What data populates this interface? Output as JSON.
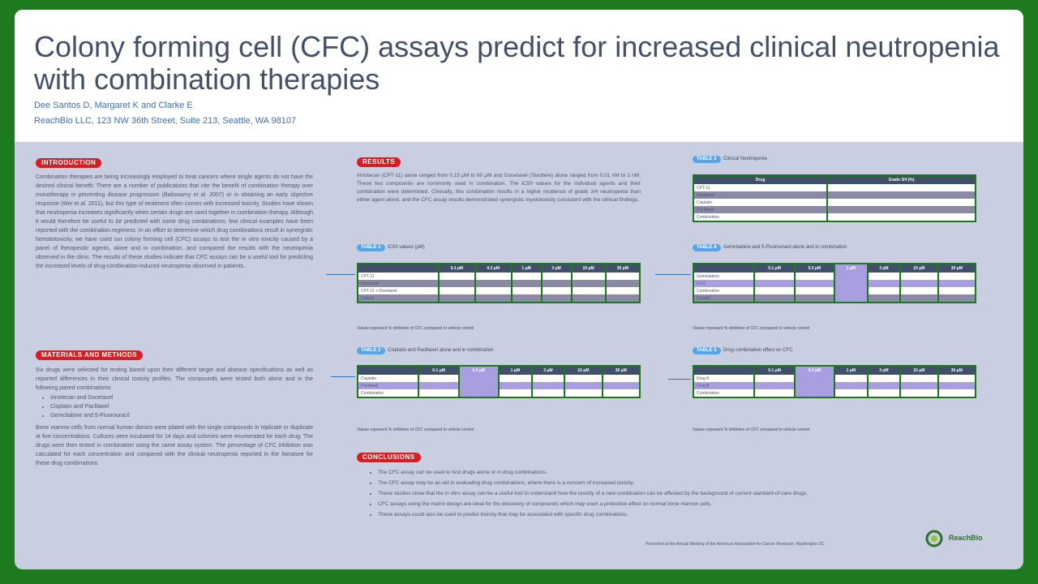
{
  "header": {
    "title": "Colony forming cell (CFC) assays predict for increased clinical neutropenia with combination therapies",
    "authors": "Dee Santos D, Margaret K and Clarke E",
    "affiliation": "ReachBio LLC, 123 NW 36th Street, Suite 213, Seattle, WA 98107"
  },
  "introduction": {
    "label": "INTRODUCTION",
    "text": "Combination therapies are being increasingly employed to treat cancers where single agents do not have the desired clinical benefit. There are a number of publications that cite the benefit of combination therapy over monotherapy in preventing disease progression (Baliswamy et al. 2007) or in obtaining an early objective response (Wei et al. 2011), but this type of treatment often comes with increased toxicity. Studies have shown that neutropenia increases significantly when certain drugs are used together in combination therapy. Although it would therefore be useful to be predicted with some drug combinations, few clinical examples have been reported with the combination regimens. In an effort to determine which drug combinations result in synergistic hematotoxicity, we have used our colony forming cell (CFC) assays to test the in vitro toxicity caused by a panel of therapeutic agents, alone and in combination, and compared the results with the neutropenia observed in the clinic. The results of these studies indicate that CFC assays can be a useful tool for predicting the increased levels of drug-combination-induced neutropenia observed in patients."
  },
  "methods": {
    "label": "MATERIALS AND METHODS",
    "text": "Six drugs were selected for testing based upon their different target and disease specifications as well as reported differences in their clinical toxicity profiles. The compounds were tested both alone and in the following paired combinations:",
    "bullets": [
      "Irinotecan and Docetaxel",
      "Cisplatin and Paclitaxel",
      "Gemcitabine and 5-Fluorouracil"
    ],
    "text2": "Bone marrow cells from normal human donors were plated with the single compounds in triplicate or duplicate at five concentrations. Cultures were incubated for 14 days and colonies were enumerated for each drug. The drugs were then tested in combination using the same assay system. The percentage of CFC inhibition was calculated for each concentration and compared with the clinical neutropenia reported in the literature for these drug combinations."
  },
  "results": {
    "label": "RESULTS",
    "text": "Irinotecan (CPT-11) alone ranged from 0.15 μM to 60 μM and Docetaxel (Taxotere) alone ranged from 0.01 nM to 1 nM. These two compounds are commonly used in combination. The IC50 values for the individual agents and their combination were determined. Clinically, this combination results in a higher incidence of grade 3/4 neutropenia than either agent alone, and the CFC assay results demonstrated synergistic myelotoxicity consistent with the clinical findings."
  },
  "tables": {
    "t1": {
      "label": "TABLE 1",
      "caption": "IC50 values (μM)",
      "headers": [
        "",
        "0.1 μM",
        "0.3 μM",
        "1 μM",
        "3 μM",
        "10 μM",
        "30 μM"
      ],
      "rows": [
        [
          "CPT-11",
          "",
          "",
          "",
          "",
          "",
          ""
        ],
        [
          "Docetaxel",
          "",
          "",
          "",
          "",
          "",
          ""
        ],
        [
          "CPT-11 + Docetaxel",
          "",
          "",
          "",
          "",
          "",
          ""
        ],
        [
          "Control",
          "",
          "",
          "",
          "",
          "",
          ""
        ]
      ],
      "note": "Values represent % inhibition of CFC compared to vehicle control"
    },
    "t2": {
      "label": "TABLE 2",
      "caption": "Cisplatin and Paclitaxel alone and in combination",
      "headers": [
        "",
        "0.1 μM",
        "0.3 μM",
        "1 μM",
        "3 μM",
        "10 μM",
        "30 μM"
      ],
      "rows": [
        [
          "Cisplatin",
          "",
          "",
          "",
          "",
          "",
          ""
        ],
        [
          "Paclitaxel",
          "",
          "",
          "",
          "",
          "",
          ""
        ],
        [
          "Combination",
          "",
          "",
          "",
          "",
          "",
          ""
        ]
      ],
      "note": "Values represent % inhibition of CFC compared to vehicle control"
    },
    "t3": {
      "label": "TABLE 3",
      "caption": "Clinical Neutropenia",
      "headers": [
        "Drug",
        "Grade 3/4 (%)"
      ],
      "rows": [
        [
          "CPT-11",
          ""
        ],
        [
          "Docetaxel",
          ""
        ],
        [
          "Cisplatin",
          ""
        ],
        [
          "Paclitaxel",
          ""
        ],
        [
          "Combination",
          ""
        ]
      ]
    },
    "t4": {
      "label": "TABLE 4",
      "caption": "Gemcitabine and 5-Fluorouracil alone and in combination",
      "headers": [
        "",
        "0.1 μM",
        "0.3 μM",
        "1 μM",
        "3 μM",
        "10 μM",
        "30 μM"
      ],
      "rows": [
        [
          "Gemcitabine",
          "",
          "",
          "",
          "",
          "",
          ""
        ],
        [
          "5-FU",
          "",
          "",
          "",
          "",
          "",
          ""
        ],
        [
          "Combination",
          "",
          "",
          "",
          "",
          "",
          ""
        ],
        [
          "Control",
          "",
          "",
          "",
          "",
          "",
          ""
        ]
      ],
      "note": "Values represent % inhibition of CFC compared to vehicle control"
    },
    "t5": {
      "label": "TABLE 5",
      "caption": "Drug combination effect on CFC",
      "headers": [
        "",
        "0.1 μM",
        "0.3 μM",
        "1 μM",
        "3 μM",
        "10 μM",
        "30 μM"
      ],
      "rows": [
        [
          "Drug A",
          "",
          "",
          "",
          "",
          "",
          ""
        ],
        [
          "Drug B",
          "",
          "",
          "",
          "",
          "",
          ""
        ],
        [
          "Combination",
          "",
          "",
          "",
          "",
          "",
          ""
        ]
      ],
      "note": "Values represent % inhibition of CFC compared to vehicle control"
    }
  },
  "conclusions": {
    "label": "CONCLUSIONS",
    "items": [
      "The CFC assay can be used to test drugs alone or in drug combinations.",
      "The CFC assay may be an aid in evaluating drug combinations, where there is a concern of increased toxicity.",
      "These studies show that the in vitro assay can be a useful tool to understand how the toxicity of a new combination can be affected by the background of current standard-of-care drugs.",
      "CFC assays using the matrix design are ideal for the discovery of compounds which may exert a protective effect on normal bone marrow cells.",
      "These assays could also be used to predict toxicity that may be associated with specific drug combinations."
    ]
  },
  "footer": {
    "note": "Presented at the Annual Meeting of the American Association for Cancer Research, Washington DC",
    "logo_text": "ReachBio"
  }
}
